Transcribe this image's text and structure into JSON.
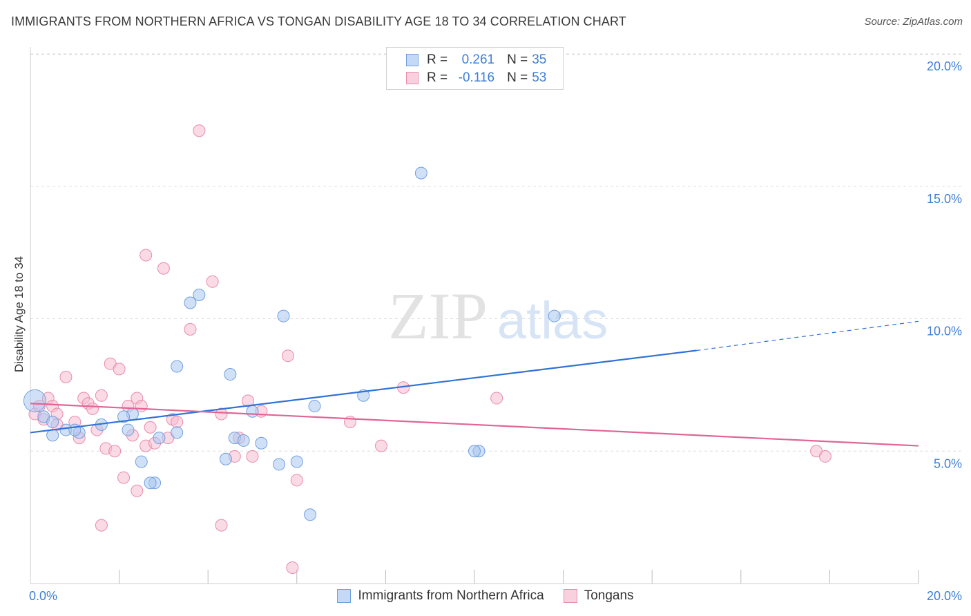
{
  "header": {
    "title": "IMMIGRANTS FROM NORTHERN AFRICA VS TONGAN DISABILITY AGE 18 TO 34 CORRELATION CHART",
    "source": "Source: ZipAtlas.com"
  },
  "watermark": {
    "zip": "ZIP",
    "atlas": "atlas"
  },
  "legend": {
    "rows": [
      {
        "r_label": "R =",
        "r_value": "0.261",
        "n_label": "N =",
        "n_value": "35"
      },
      {
        "r_label": "R =",
        "r_value": "-0.116",
        "n_label": "N =",
        "n_value": "53"
      }
    ]
  },
  "colors": {
    "blue_fill": "#aac8f0",
    "blue_stroke": "#6f9fe0",
    "blue_line": "#2f72d6",
    "pink_fill": "#f6bcd0",
    "pink_stroke": "#e98bab",
    "pink_line": "#e06595",
    "grid": "#dddddd",
    "axis_text": "#3d7fd6"
  },
  "chart_data": {
    "type": "scatter",
    "title": "IMMIGRANTS FROM NORTHERN AFRICA VS TONGAN DISABILITY AGE 18 TO 34 CORRELATION CHART",
    "xlabel": "",
    "ylabel": "Disability Age 18 to 34",
    "xlim": [
      0,
      20
    ],
    "ylim": [
      0,
      20.5
    ],
    "x_tick_labels": [
      "0.0%",
      "20.0%"
    ],
    "y_ticks": [
      5,
      10,
      15,
      20
    ],
    "y_tick_labels": [
      "5.0%",
      "10.0%",
      "15.0%",
      "20.0%"
    ],
    "grid": true,
    "legend_position": "top-center",
    "series": [
      {
        "name": "Immigrants from Northern Africa",
        "r": 0.261,
        "n": 35,
        "trend": {
          "x0": 0,
          "y0": 5.7,
          "x1": 15,
          "y1": 8.8,
          "dash_to_x": 20,
          "dash_to_y": 9.9
        },
        "points": [
          [
            0.1,
            6.9
          ],
          [
            0.3,
            6.3
          ],
          [
            0.5,
            6.1
          ],
          [
            0.5,
            5.6
          ],
          [
            0.8,
            5.8
          ],
          [
            1.1,
            5.7
          ],
          [
            1.0,
            5.8
          ],
          [
            1.6,
            6.0
          ],
          [
            2.3,
            6.4
          ],
          [
            2.1,
            6.3
          ],
          [
            2.2,
            5.8
          ],
          [
            2.5,
            4.6
          ],
          [
            2.9,
            5.5
          ],
          [
            3.3,
            5.7
          ],
          [
            3.3,
            8.2
          ],
          [
            2.8,
            3.8
          ],
          [
            2.7,
            3.8
          ],
          [
            3.6,
            10.6
          ],
          [
            3.8,
            10.9
          ],
          [
            4.4,
            4.7
          ],
          [
            4.5,
            7.9
          ],
          [
            4.6,
            5.5
          ],
          [
            4.8,
            5.4
          ],
          [
            5.0,
            6.5
          ],
          [
            5.2,
            5.3
          ],
          [
            5.6,
            4.5
          ],
          [
            5.7,
            10.1
          ],
          [
            6.0,
            4.6
          ],
          [
            6.4,
            6.7
          ],
          [
            6.3,
            2.6
          ],
          [
            7.5,
            7.1
          ],
          [
            8.8,
            15.5
          ],
          [
            10.1,
            5.0
          ],
          [
            10.0,
            5.0
          ],
          [
            11.8,
            10.1
          ]
        ]
      },
      {
        "name": "Tongans",
        "r": -0.116,
        "n": 53,
        "trend": {
          "x0": 0,
          "y0": 6.8,
          "x1": 20,
          "y1": 5.2
        },
        "points": [
          [
            0.1,
            6.4
          ],
          [
            0.2,
            6.7
          ],
          [
            0.3,
            6.2
          ],
          [
            0.4,
            7.0
          ],
          [
            0.5,
            6.7
          ],
          [
            0.6,
            6.4
          ],
          [
            0.8,
            7.8
          ],
          [
            1.0,
            6.1
          ],
          [
            1.1,
            5.5
          ],
          [
            1.2,
            7.0
          ],
          [
            1.3,
            6.8
          ],
          [
            1.4,
            6.6
          ],
          [
            1.5,
            5.8
          ],
          [
            1.6,
            7.1
          ],
          [
            1.7,
            5.1
          ],
          [
            1.8,
            8.3
          ],
          [
            1.9,
            5.0
          ],
          [
            2.0,
            8.1
          ],
          [
            2.1,
            4.0
          ],
          [
            2.2,
            6.7
          ],
          [
            2.3,
            5.6
          ],
          [
            2.4,
            7.0
          ],
          [
            2.5,
            6.7
          ],
          [
            2.6,
            5.2
          ],
          [
            2.7,
            5.9
          ],
          [
            2.6,
            12.4
          ],
          [
            2.8,
            5.3
          ],
          [
            3.0,
            11.9
          ],
          [
            3.1,
            5.5
          ],
          [
            3.2,
            6.2
          ],
          [
            3.3,
            6.1
          ],
          [
            3.6,
            9.6
          ],
          [
            3.8,
            17.1
          ],
          [
            4.1,
            11.4
          ],
          [
            4.3,
            6.4
          ],
          [
            4.3,
            2.2
          ],
          [
            4.6,
            4.8
          ],
          [
            4.7,
            5.5
          ],
          [
            5.0,
            4.8
          ],
          [
            5.2,
            6.5
          ],
          [
            5.8,
            8.6
          ],
          [
            6.0,
            3.9
          ],
          [
            5.9,
            0.6
          ],
          [
            7.2,
            6.1
          ],
          [
            7.9,
            5.2
          ],
          [
            8.4,
            7.4
          ],
          [
            10.5,
            7.0
          ],
          [
            17.7,
            5.0
          ],
          [
            17.9,
            4.8
          ],
          [
            1.6,
            2.2
          ],
          [
            0.6,
            6.0
          ],
          [
            2.4,
            3.5
          ],
          [
            4.9,
            6.9
          ]
        ]
      }
    ]
  },
  "bottom_legend": {
    "items": [
      {
        "label": "Immigrants from Northern Africa"
      },
      {
        "label": "Tongans"
      }
    ]
  }
}
